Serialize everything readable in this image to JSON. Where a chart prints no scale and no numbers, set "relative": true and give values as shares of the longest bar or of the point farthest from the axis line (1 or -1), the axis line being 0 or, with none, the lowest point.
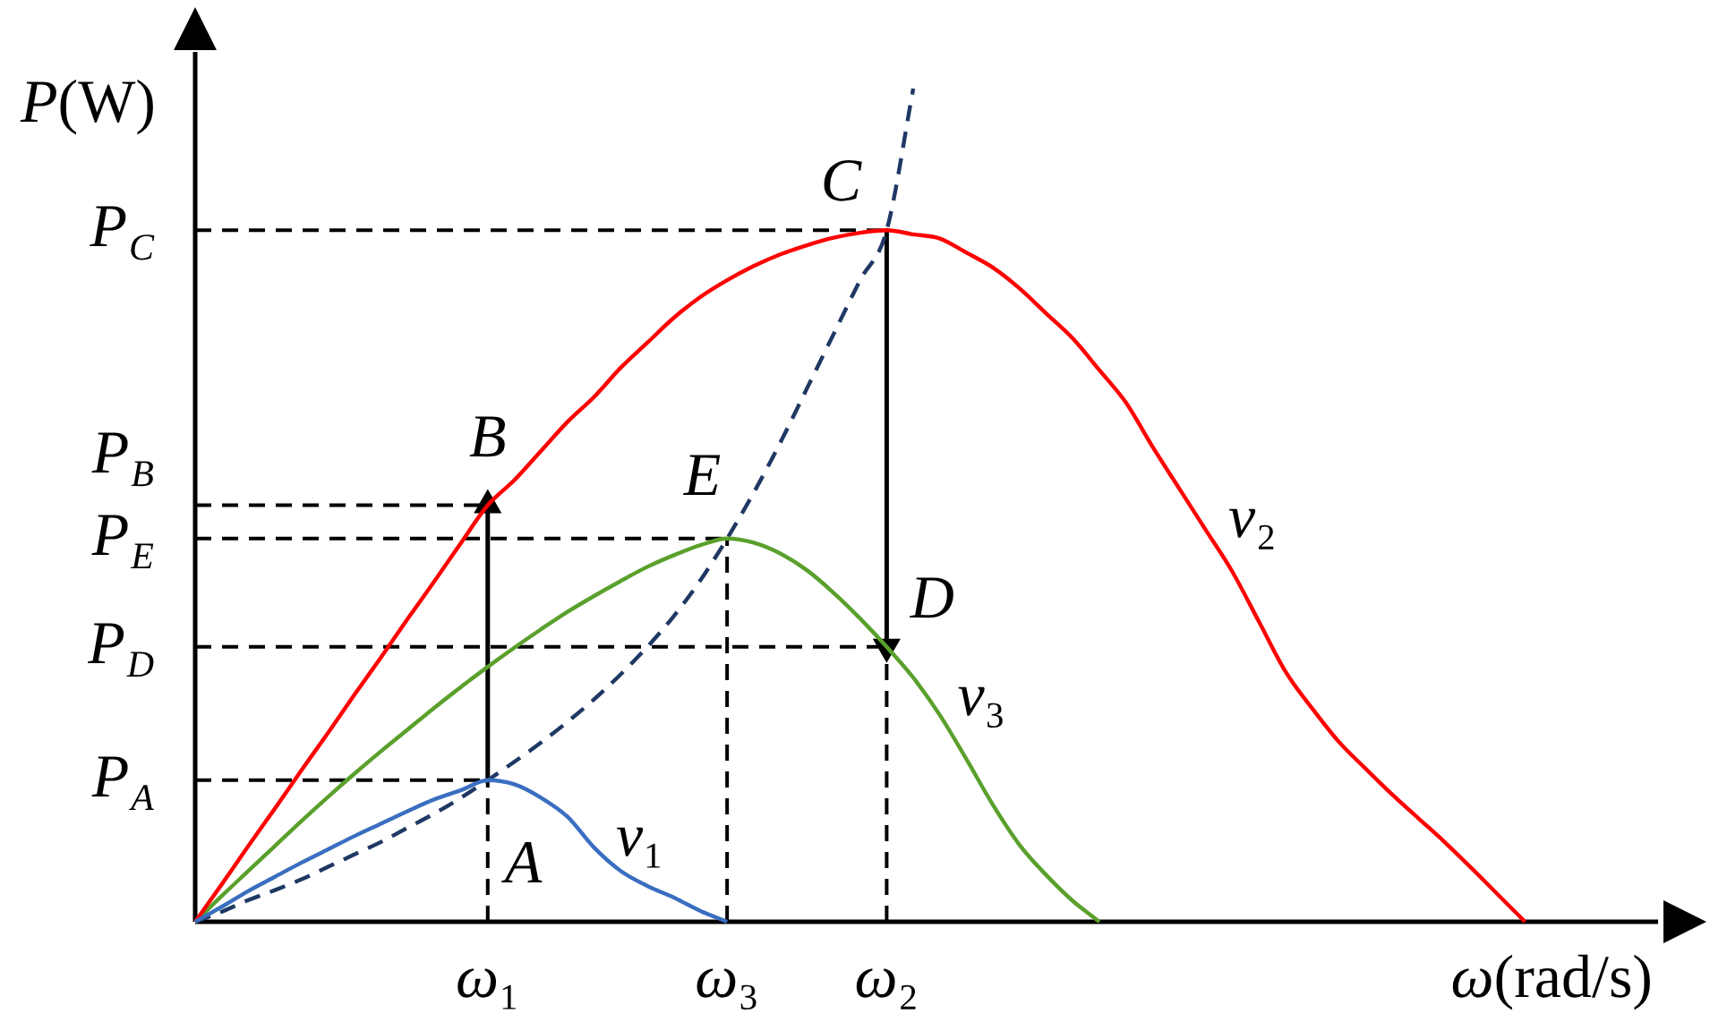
{
  "chart_data": {
    "type": "line",
    "relative": true,
    "xlabel": "ω(rad/s)",
    "ylabel": "P(W)",
    "categories": [
      null,
      null,
      null,
      null,
      null,
      null,
      null,
      null,
      null,
      null,
      null,
      "ω₁",
      null,
      null,
      null,
      null,
      null,
      null,
      null,
      null,
      "ω₃",
      null,
      null,
      null,
      null,
      null,
      "ω₂",
      null,
      null,
      null,
      null,
      null,
      null,
      null,
      null,
      null,
      null,
      null,
      null,
      null,
      null,
      null,
      null,
      null,
      null,
      null,
      null,
      null,
      null,
      null,
      null
    ],
    "series": [
      {
        "name": "v₁",
        "color": "#3a6ec0",
        "values": [
          0,
          0.018,
          0.037,
          0.054,
          0.071,
          0.087,
          0.103,
          0.118,
          0.133,
          0.147,
          0.158,
          0.17,
          0.165,
          0.149,
          0.126,
          0.089,
          0.061,
          0.043,
          0.029,
          0.013,
          0,
          null,
          null,
          null,
          null,
          null,
          null,
          null,
          null,
          null,
          null,
          null,
          null,
          null,
          null,
          null,
          null,
          null,
          null,
          null,
          null,
          null,
          null,
          null,
          null,
          null,
          null,
          null,
          null,
          null,
          null
        ]
      },
      {
        "name": "v₂",
        "color": "#ff0000",
        "values": [
          0,
          0.045,
          0.091,
          0.136,
          0.182,
          0.227,
          0.273,
          0.318,
          0.364,
          0.409,
          0.455,
          0.5,
          0.53,
          0.565,
          0.6,
          0.63,
          0.665,
          0.695,
          0.725,
          0.75,
          0.77,
          0.787,
          0.801,
          0.812,
          0.821,
          0.827,
          0.83,
          0.825,
          0.82,
          0.803,
          0.785,
          0.76,
          0.73,
          0.7,
          0.662,
          0.623,
          0.57,
          0.52,
          0.47,
          0.42,
          0.36,
          0.3,
          0.256,
          0.216,
          0.184,
          0.153,
          0.124,
          0.095,
          0.064,
          0.032,
          0
        ]
      },
      {
        "name": "v₃",
        "color": "#5aa02c",
        "values": [
          0,
          0.031,
          0.061,
          0.091,
          0.121,
          0.15,
          0.178,
          0.205,
          0.231,
          0.257,
          0.282,
          0.306,
          0.329,
          0.351,
          0.372,
          0.391,
          0.409,
          0.426,
          0.44,
          0.452,
          0.46,
          0.455,
          0.442,
          0.422,
          0.395,
          0.364,
          0.33,
          0.293,
          0.248,
          0.195,
          0.14,
          0.092,
          0.056,
          0.025,
          0,
          null,
          null,
          null,
          null,
          null,
          null,
          null,
          null,
          null,
          null,
          null,
          null,
          null,
          null,
          null,
          null
        ]
      },
      {
        "color": "#1f3864",
        "line_style": "dashed",
        "values": [
          0,
          0.012,
          0.026,
          0.038,
          0.051,
          0.066,
          0.081,
          0.096,
          0.113,
          0.13,
          0.149,
          0.17,
          0.192,
          0.215,
          0.24,
          0.267,
          0.297,
          0.33,
          0.367,
          0.41,
          0.46,
          0.515,
          0.575,
          0.64,
          0.705,
          0.77,
          0.83,
          1,
          null,
          null,
          null,
          null,
          null,
          null,
          null,
          null,
          null,
          null,
          null,
          null,
          null,
          null,
          null,
          null,
          null,
          null,
          null,
          null,
          null,
          null,
          null
        ]
      },
      {
        "color": "#000000",
        "marker": "triangle",
        "x": [
          "ω₁",
          "ω₁"
        ],
        "values": [
          0.17,
          0.5
        ]
      },
      {
        "color": "#000000",
        "marker": "triangle",
        "x": [
          "ω₂",
          "ω₂"
        ],
        "values": [
          0.83,
          0.33
        ]
      }
    ],
    "ref_lines": [
      {
        "axis": "y",
        "value": 0.83,
        "label": "P$_{C}$",
        "color": "#000000",
        "line_style": "dashed"
      },
      {
        "axis": "y",
        "value": 0.5,
        "label": "P$_{B}$",
        "color": "#000000",
        "line_style": "dashed"
      },
      {
        "axis": "y",
        "value": 0.46,
        "label": "P$_{E}$",
        "color": "#000000",
        "line_style": "dashed"
      },
      {
        "axis": "y",
        "value": 0.33,
        "label": "P$_{D}$",
        "color": "#000000",
        "line_style": "dashed"
      },
      {
        "axis": "y",
        "value": 0.17,
        "label": "P$_{A}$",
        "color": "#000000",
        "line_style": "dashed"
      },
      {
        "axis": "x",
        "value": "ω₁",
        "color": "#000000",
        "line_style": "dashed"
      },
      {
        "axis": "x",
        "value": "ω₃",
        "color": "#000000",
        "line_style": "dashed"
      },
      {
        "axis": "x",
        "value": "ω₂",
        "color": "#000000",
        "line_style": "dashed"
      }
    ],
    "annotations": [
      {
        "text": "A",
        "x": "ω₁",
        "y": 0.17
      },
      {
        "text": "B",
        "x": "ω₁",
        "y": 0.5
      },
      {
        "text": "C",
        "x": "ω₂",
        "y": 0.83
      },
      {
        "text": "D",
        "x": "ω₂",
        "y": 0.33
      },
      {
        "text": "E",
        "x": "ω₃",
        "y": 0.46
      }
    ]
  }
}
